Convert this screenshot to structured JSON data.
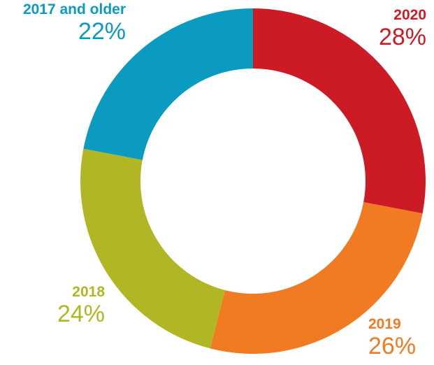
{
  "chart_data": {
    "type": "donut",
    "categories": [
      "2020",
      "2019",
      "2018",
      "2017 and older"
    ],
    "values": [
      28,
      26,
      24,
      22
    ],
    "value_labels": [
      "28%",
      "26%",
      "24%",
      "22%"
    ],
    "colors": [
      "#cc1b24",
      "#f07b22",
      "#b1b724",
      "#0b9bc1"
    ]
  }
}
